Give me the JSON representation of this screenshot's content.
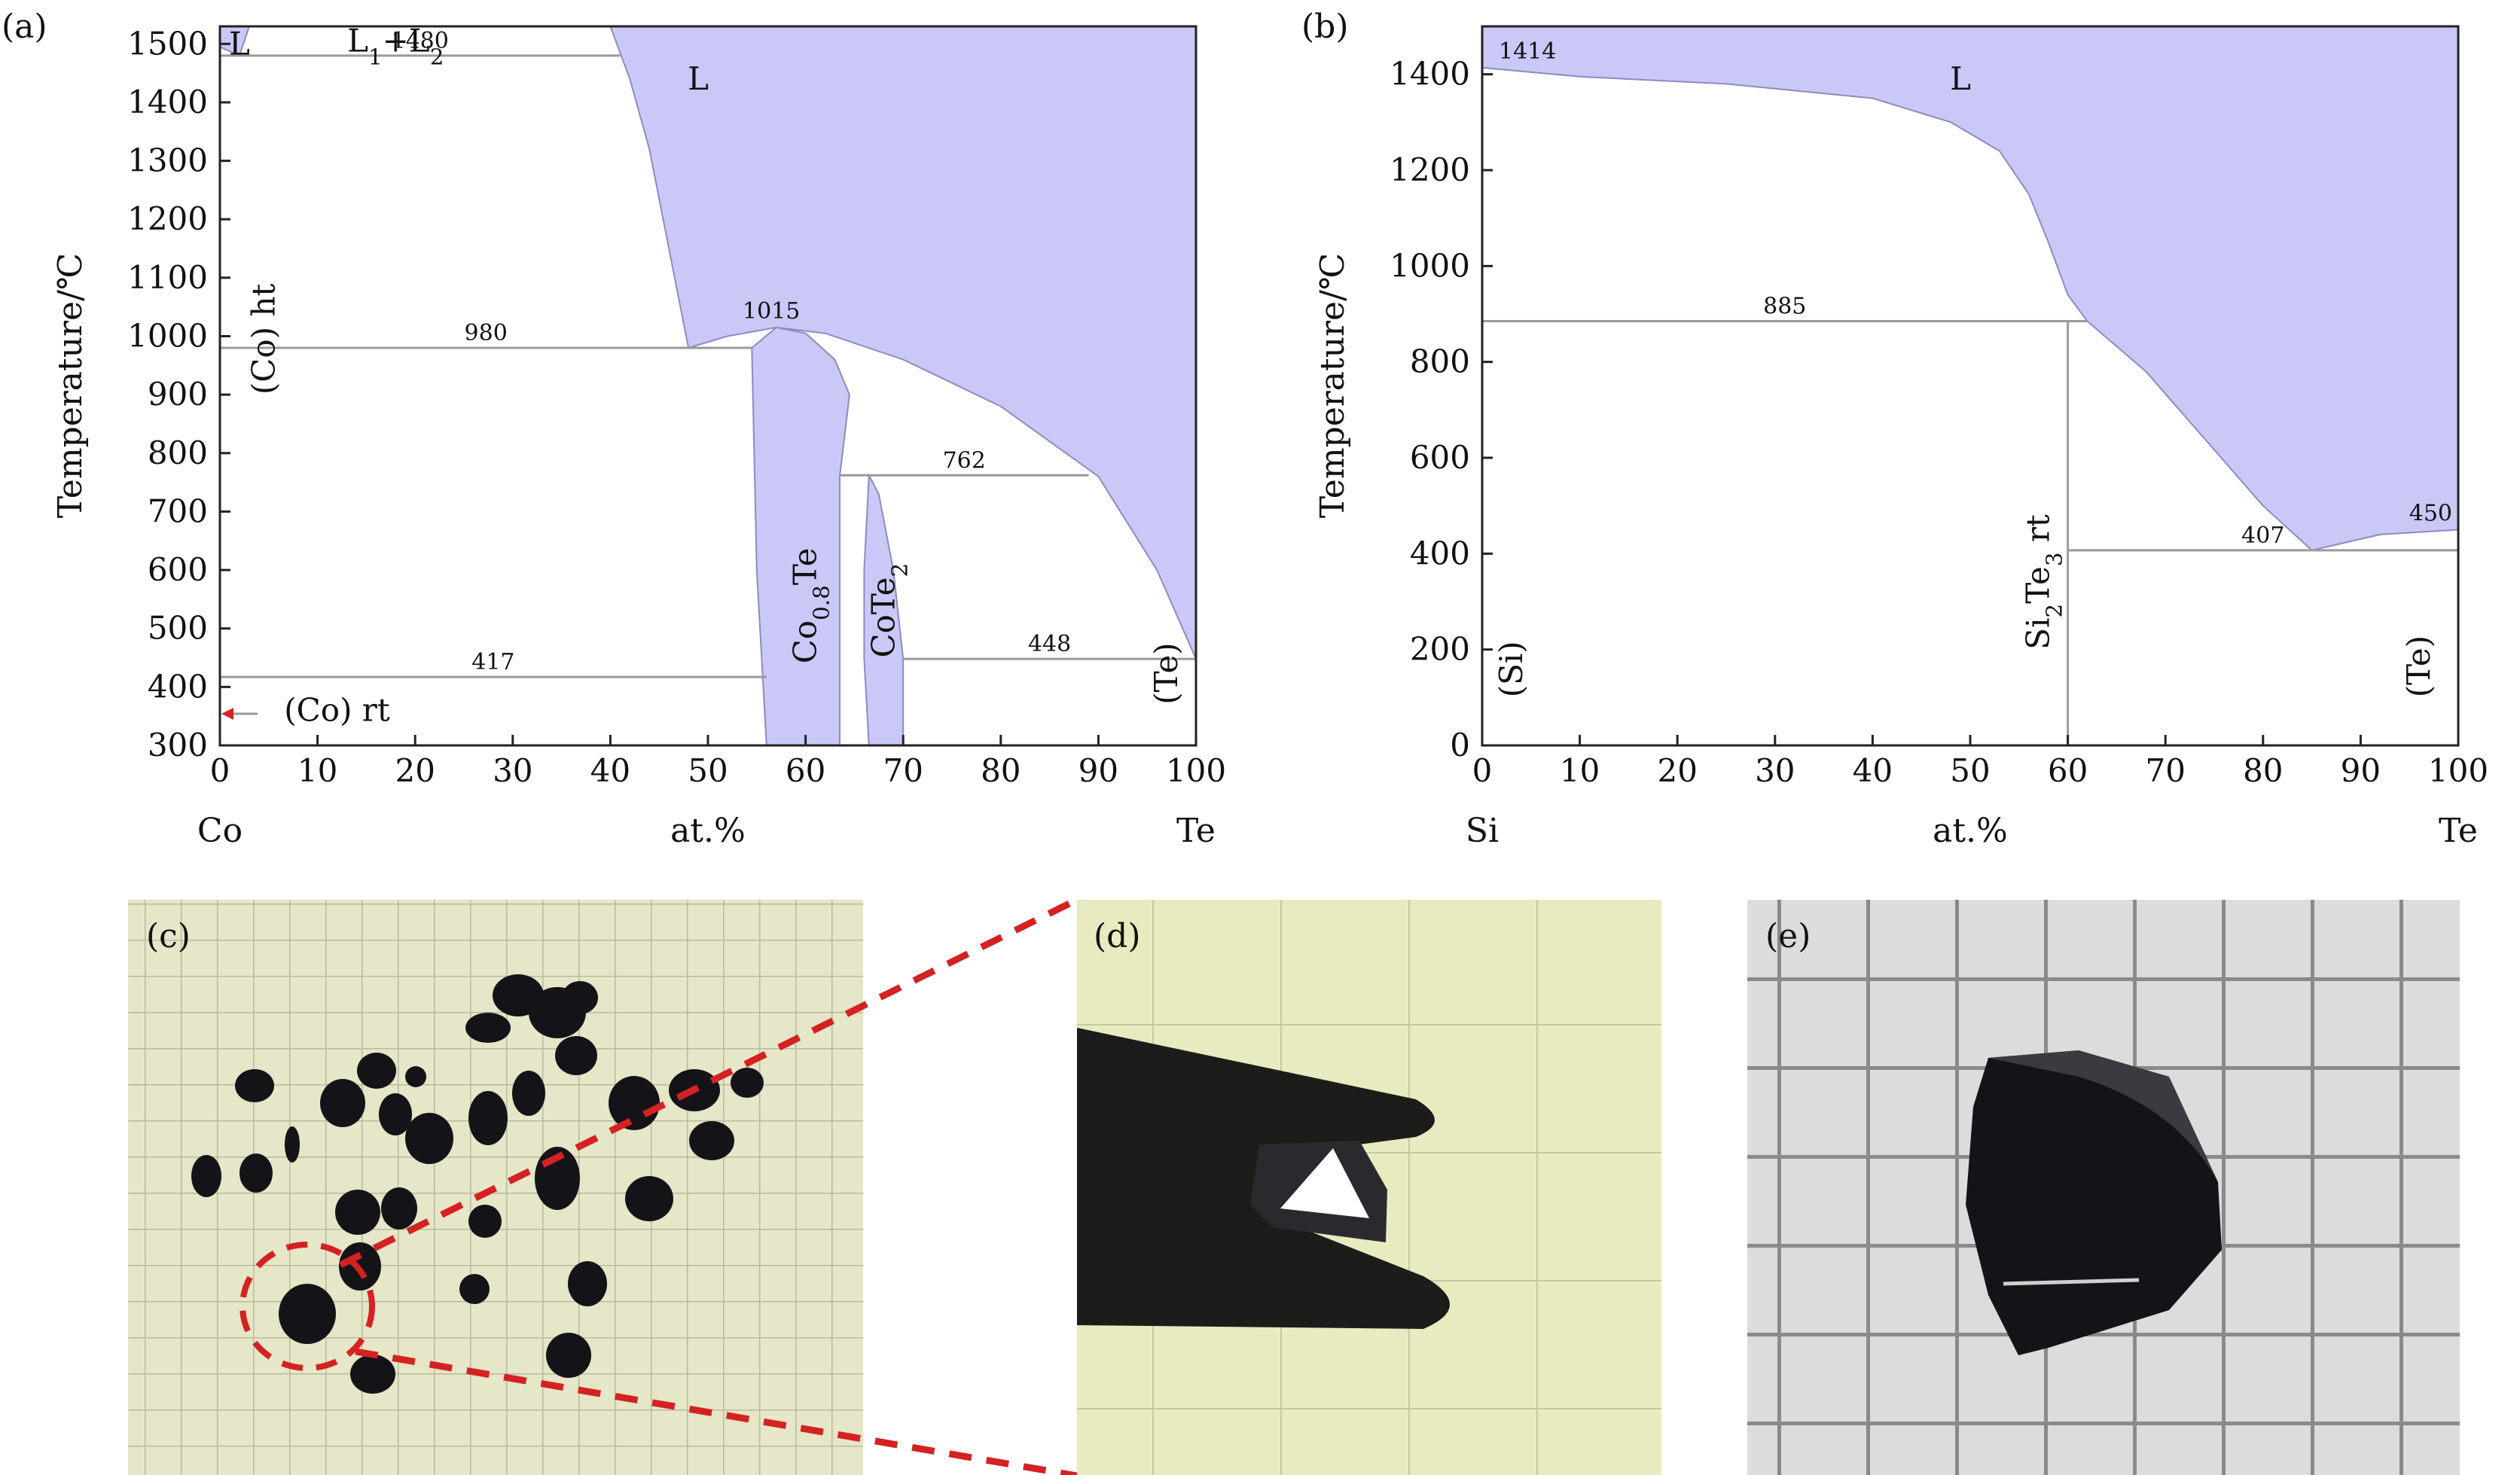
{
  "colors": {
    "liquid": "#c9c8f7",
    "liquid_edge": "#8e8bbf",
    "frame": "#222222",
    "phase_line": "#9a9a9a",
    "photo_bg_c": "#e6e6c8",
    "photo_bg_d": "#e8ebbf",
    "photo_bg_e": "#dcdcdc",
    "crystal": "#141418",
    "highlight": "#d42222"
  },
  "chart_data": [
    {
      "type": "area",
      "panel_label": "(a)",
      "xlabel": "at.%",
      "ylabel": "Temperature/℃",
      "x_left_element": "Co",
      "x_right_element": "Te",
      "xlim": [
        0,
        100
      ],
      "ylim": [
        300,
        1530
      ],
      "x_ticks": [
        0,
        10,
        20,
        30,
        40,
        50,
        60,
        70,
        80,
        90,
        100
      ],
      "y_ticks": [
        300,
        400,
        500,
        600,
        700,
        800,
        900,
        1000,
        1100,
        1200,
        1300,
        1400,
        1500
      ],
      "liquid_regions": [
        {
          "name": "L",
          "points": [
            [
              0,
              1530
            ],
            [
              3,
              1530
            ],
            [
              2,
              1480
            ],
            [
              0,
              1495
            ]
          ]
        },
        {
          "name": "L",
          "points": [
            [
              40,
              1530
            ],
            [
              100,
              1530
            ],
            [
              100,
              448
            ],
            [
              96,
              600
            ],
            [
              90,
              760
            ],
            [
              80,
              880
            ],
            [
              70,
              960
            ],
            [
              62,
              1005
            ],
            [
              57,
              1015
            ],
            [
              52,
              1000
            ],
            [
              48,
              980
            ],
            [
              46,
              1150
            ],
            [
              44,
              1320
            ],
            [
              42,
              1440
            ],
            [
              40,
              1530
            ]
          ]
        },
        {
          "name": "Co0.8Te",
          "points": [
            [
              54.5,
              980
            ],
            [
              57,
              1015
            ],
            [
              60,
              1005
            ],
            [
              63,
              960
            ],
            [
              64.5,
              900
            ],
            [
              63.5,
              760
            ],
            [
              63.5,
              300
            ],
            [
              56,
              300
            ],
            [
              55,
              600
            ],
            [
              54.5,
              980
            ]
          ]
        },
        {
          "name": "CoTe2",
          "points": [
            [
              66.5,
              762
            ],
            [
              67.5,
              730
            ],
            [
              69,
              600
            ],
            [
              70,
              448
            ],
            [
              70,
              300
            ],
            [
              66.5,
              300
            ],
            [
              66,
              448
            ],
            [
              66,
              600
            ],
            [
              66.5,
              762
            ]
          ]
        }
      ],
      "lines": [
        {
          "label": "1480",
          "y": 1480,
          "x1": 0,
          "x2": 41
        },
        {
          "label": "980",
          "y": 980,
          "x1": 0,
          "x2": 54.5
        },
        {
          "label": "417",
          "y": 417,
          "x1": 0,
          "x2": 56
        },
        {
          "label": "762",
          "y": 762,
          "x1": 63.5,
          "x2": 89
        },
        {
          "label": "448",
          "y": 448,
          "x1": 70,
          "x2": 100
        }
      ],
      "point_labels": [
        {
          "text": "1015",
          "x": 56.5,
          "y": 1015
        }
      ],
      "regions": [
        {
          "text": "L",
          "x": 2,
          "y": 1500
        },
        {
          "text": "L1+L2",
          "x": 18,
          "y": 1505
        },
        {
          "text": "L",
          "x": 49,
          "y": 1440
        },
        {
          "text": "(Co) ht",
          "x": 4.5,
          "y": 900
        },
        {
          "text": "(Co) rt",
          "x": 12,
          "y": 360
        },
        {
          "text": "Co0.8Te",
          "x": 60,
          "y": 440
        },
        {
          "text": "CoTe2",
          "x": 68,
          "y": 450
        },
        {
          "text": "(Te)",
          "x": 97,
          "y": 370
        }
      ]
    },
    {
      "type": "area",
      "panel_label": "(b)",
      "xlabel": "at.%",
      "ylabel": "Temperature/℃",
      "x_left_element": "Si",
      "x_right_element": "Te",
      "xlim": [
        0,
        100
      ],
      "ylim": [
        0,
        1500
      ],
      "x_ticks": [
        0,
        10,
        20,
        30,
        40,
        50,
        60,
        70,
        80,
        90,
        100
      ],
      "y_ticks": [
        0,
        200,
        400,
        600,
        800,
        1000,
        1200,
        1400
      ],
      "liquid_regions": [
        {
          "name": "L",
          "points": [
            [
              0,
              1500
            ],
            [
              100,
              1500
            ],
            [
              100,
              450
            ],
            [
              92,
              440
            ],
            [
              85,
              407
            ],
            [
              80,
              500
            ],
            [
              74,
              640
            ],
            [
              68,
              780
            ],
            [
              62,
              885
            ],
            [
              60,
              940
            ],
            [
              58,
              1050
            ],
            [
              56,
              1150
            ],
            [
              53,
              1240
            ],
            [
              48,
              1300
            ],
            [
              40,
              1350
            ],
            [
              25,
              1380
            ],
            [
              10,
              1395
            ],
            [
              0,
              1414
            ]
          ]
        }
      ],
      "lines": [
        {
          "label": "885",
          "y": 885,
          "x1": 0,
          "x2": 62
        },
        {
          "label": "407",
          "y": 407,
          "x1": 60,
          "x2": 100
        }
      ],
      "vertical_lines": [
        {
          "x": 60,
          "y1": 0,
          "y2": 885
        }
      ],
      "point_labels": [
        {
          "text": "1414",
          "x": 0,
          "y": 1414
        },
        {
          "text": "450",
          "x": 100,
          "y": 450
        }
      ],
      "regions": [
        {
          "text": "L",
          "x": 49,
          "y": 1390
        },
        {
          "text": "(Si)",
          "x": 3,
          "y": 100
        },
        {
          "text": "Si2Te3 rt",
          "x": 57,
          "y": 200
        },
        {
          "text": "(Te)",
          "x": 96,
          "y": 100
        }
      ]
    }
  ],
  "photos": [
    {
      "label": "(c)"
    },
    {
      "label": "(d)"
    },
    {
      "label": "(e)"
    }
  ]
}
